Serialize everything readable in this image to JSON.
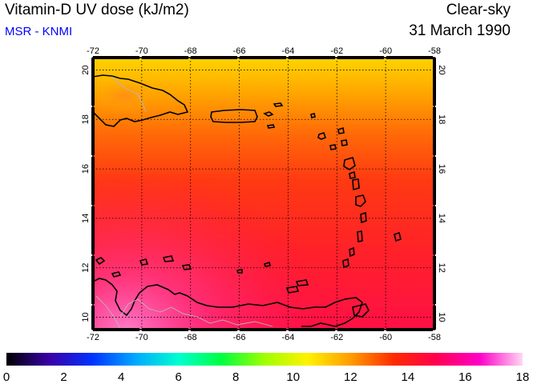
{
  "header": {
    "title": "Vitamin-D UV dose (kJ/m2)",
    "subtitle": "MSR - KNMI",
    "subtitle_color": "#0000ff",
    "condition": "Clear-sky",
    "date": "31 March 1990"
  },
  "map": {
    "region": "Caribbean Sea / Lesser Antilles",
    "lon_ticks": [
      "-72",
      "-70",
      "-68",
      "-66",
      "-64",
      "-62",
      "-60",
      "-58"
    ],
    "lat_ticks": [
      "10",
      "12",
      "14",
      "16",
      "18",
      "20"
    ],
    "lon_range": [
      -72,
      -58
    ],
    "lat_range": [
      9.5,
      20.5
    ],
    "grid": true,
    "grid_style": "dotted",
    "field_colors": {
      "north": "#ffcc00",
      "middle": "#ff3a12",
      "south": "#ff1440",
      "southwest_maximum": "#ff5fb8"
    },
    "coastline_color": "#000000",
    "border_color": "#b0b0b0"
  },
  "colorbar": {
    "ticks": [
      "0",
      "2",
      "4",
      "6",
      "8",
      "10",
      "12",
      "14",
      "16",
      "18"
    ],
    "range": [
      0,
      18
    ],
    "stops": [
      "#000000",
      "#3a00a8",
      "#0033ff",
      "#00a8ff",
      "#00ffd0",
      "#00ff40",
      "#9fff00",
      "#fff200",
      "#ff9d00",
      "#ff2a00",
      "#ff0050",
      "#ff00c8",
      "#ffd6f4"
    ]
  }
}
